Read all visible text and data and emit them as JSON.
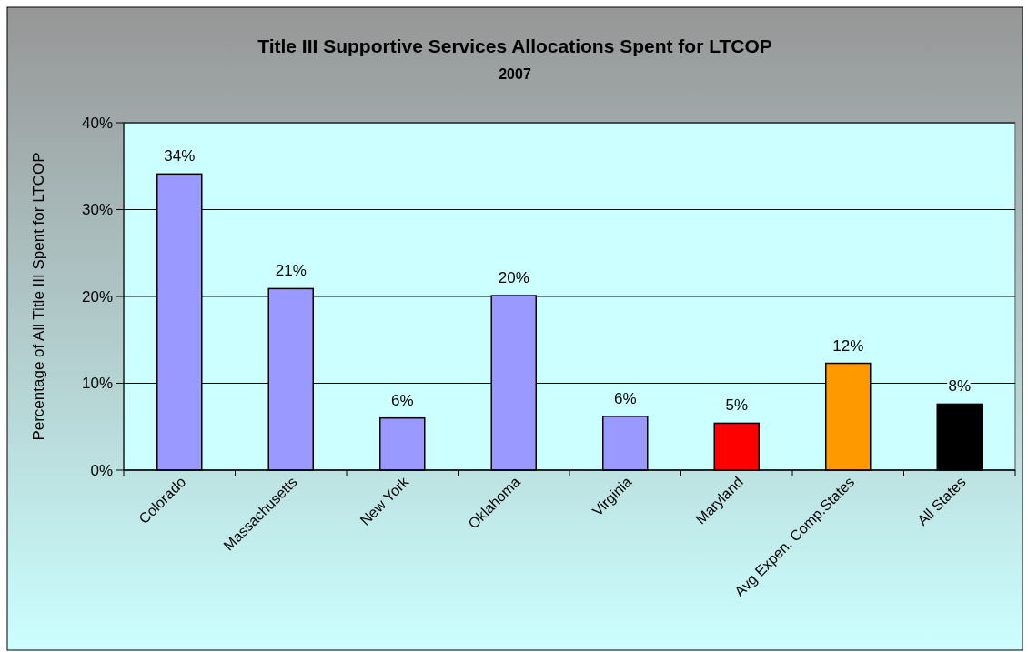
{
  "chart_data": {
    "type": "bar",
    "title": "Title III Supportive Services Allocations Spent for LTCOP",
    "subtitle": "2007",
    "ylabel": "Percentage of All Title III Spent for LTCOP",
    "categories": [
      "Colorado",
      "Massachusetts",
      "New York",
      "Oklahoma",
      "Virginia",
      "Maryland",
      "Avg Expen. Comp.States",
      "All States"
    ],
    "values": [
      34.1,
      20.9,
      6.0,
      20.1,
      6.2,
      5.4,
      12.3,
      7.6
    ],
    "colors": [
      "#9999ff",
      "#9999ff",
      "#9999ff",
      "#9999ff",
      "#9999ff",
      "#ff0000",
      "#ff9900",
      "#000000"
    ],
    "value_labels": [
      "34%",
      "21%",
      "6%",
      "20%",
      "6%",
      "5%",
      "12%",
      "8%"
    ],
    "ylim": [
      0,
      40
    ],
    "yticks": [
      {
        "value": 0,
        "label": "0%"
      },
      {
        "value": 10,
        "label": "10%"
      },
      {
        "value": 20,
        "label": "20%"
      },
      {
        "value": 30,
        "label": "30%"
      },
      {
        "value": 40,
        "label": "40%"
      }
    ],
    "grid": "y"
  }
}
